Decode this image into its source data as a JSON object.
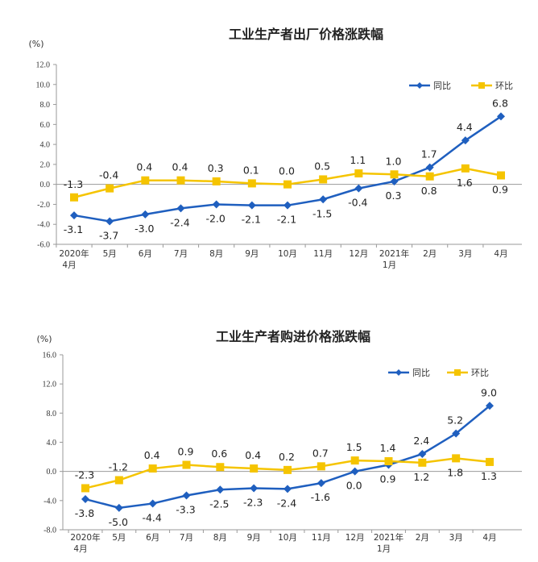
{
  "colors": {
    "yoy": "#1f5fbf",
    "mom": "#f5c400",
    "axis": "#999999"
  },
  "chart_data": [
    {
      "type": "line",
      "title": "工业生产者出厂价格涨跌幅",
      "unit": "(%)",
      "categories": [
        [
          "2020年",
          "4月"
        ],
        [
          "5月"
        ],
        [
          "6月"
        ],
        [
          "7月"
        ],
        [
          "8月"
        ],
        [
          "9月"
        ],
        [
          "10月"
        ],
        [
          "11月"
        ],
        [
          "12月"
        ],
        [
          "2021年",
          "1月"
        ],
        [
          "2月"
        ],
        [
          "3月"
        ],
        [
          "4月"
        ]
      ],
      "ylim": [
        -6.0,
        12.0
      ],
      "yticks": [
        12.0,
        10.0,
        8.0,
        6.0,
        4.0,
        2.0,
        0.0,
        -2.0,
        -4.0,
        -6.0
      ],
      "ytick_labels": [
        "12.0",
        "10.0",
        "8.0",
        "6.0",
        "4.0",
        "2.0",
        "0.0",
        "-2.0",
        "-4.0",
        "-6.0"
      ],
      "legend_position": "top-right",
      "series": [
        {
          "name": "同比",
          "key": "yoy",
          "values": [
            -3.1,
            -3.7,
            -3.0,
            -2.4,
            -2.0,
            -2.1,
            -2.1,
            -1.5,
            -0.4,
            0.3,
            1.7,
            4.4,
            6.8
          ],
          "labels": [
            "-3.1",
            "-3.7",
            "-3.0",
            "-2.4",
            "-2.0",
            "-2.1",
            "-2.1",
            "-1.5",
            "-0.4",
            "0.3",
            "1.7",
            "4.4",
            "6.8"
          ]
        },
        {
          "name": "环比",
          "key": "mom",
          "values": [
            -1.3,
            -0.4,
            0.4,
            0.4,
            0.3,
            0.1,
            0.0,
            0.5,
            1.1,
            1.0,
            0.8,
            1.6,
            0.9
          ],
          "labels": [
            "-1.3",
            "-0.4",
            "0.4",
            "0.4",
            "0.3",
            "0.1",
            "0.0",
            "0.5",
            "1.1",
            "1.0",
            "0.8",
            "1.6",
            "0.9"
          ]
        }
      ]
    },
    {
      "type": "line",
      "title": "工业生产者购进价格涨跌幅",
      "unit": "(%)",
      "categories": [
        [
          "2020年",
          "4月"
        ],
        [
          "5月"
        ],
        [
          "6月"
        ],
        [
          "7月"
        ],
        [
          "8月"
        ],
        [
          "9月"
        ],
        [
          "10月"
        ],
        [
          "11月"
        ],
        [
          "12月"
        ],
        [
          "2021年",
          "1月"
        ],
        [
          "2月"
        ],
        [
          "3月"
        ],
        [
          "4月"
        ]
      ],
      "ylim": [
        -8.0,
        16.0
      ],
      "yticks": [
        16.0,
        12.0,
        8.0,
        4.0,
        0.0,
        -4.0,
        -8.0
      ],
      "ytick_labels": [
        "16.0",
        "12.0",
        "8.0",
        "4.0",
        "0.0",
        "-4.0",
        "-8.0"
      ],
      "legend_position": "top-right",
      "series": [
        {
          "name": "同比",
          "key": "yoy",
          "values": [
            -3.8,
            -5.0,
            -4.4,
            -3.3,
            -2.5,
            -2.3,
            -2.4,
            -1.6,
            0.0,
            0.9,
            2.4,
            5.2,
            9.0
          ],
          "labels": [
            "-3.8",
            "-5.0",
            "-4.4",
            "-3.3",
            "-2.5",
            "-2.3",
            "-2.4",
            "-1.6",
            "0.0",
            "0.9",
            "2.4",
            "5.2",
            "9.0"
          ]
        },
        {
          "name": "环比",
          "key": "mom",
          "values": [
            -2.3,
            -1.2,
            0.4,
            0.9,
            0.6,
            0.4,
            0.2,
            0.7,
            1.5,
            1.4,
            1.2,
            1.8,
            1.3
          ],
          "labels": [
            "-2.3",
            "-1.2",
            "0.4",
            "0.9",
            "0.6",
            "0.4",
            "0.2",
            "0.7",
            "1.5",
            "1.4",
            "1.2",
            "1.8",
            "1.3"
          ]
        }
      ]
    }
  ]
}
